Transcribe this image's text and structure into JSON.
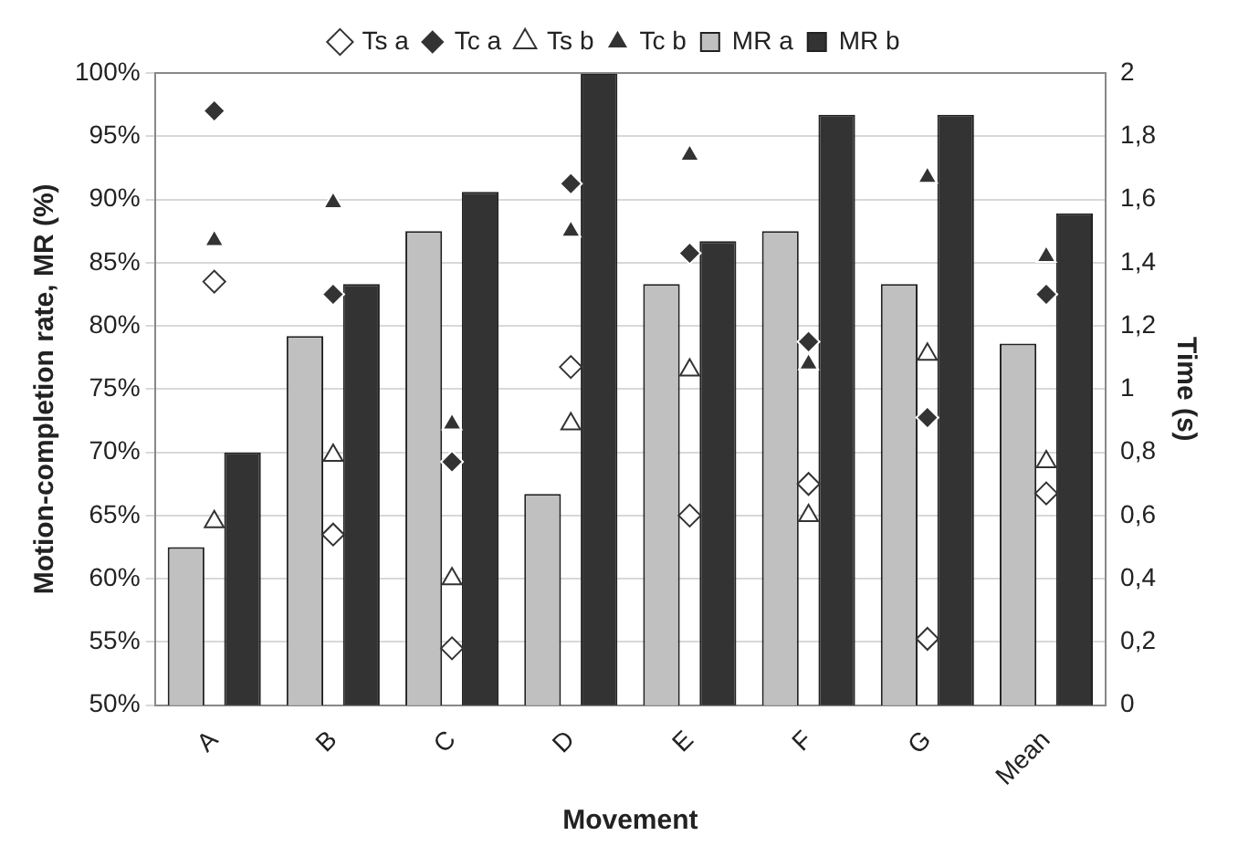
{
  "chart_data": {
    "type": "bar",
    "xlabel": "Movement",
    "ylabel": "Motion-completion rate, MR (%)",
    "y2label": "Time (s)",
    "categories": [
      "A",
      "B",
      "C",
      "D",
      "E",
      "F",
      "G",
      "Mean"
    ],
    "series": [
      {
        "name": "MR a",
        "color": "#c0c0c0",
        "values": [
          62.5,
          79.2,
          87.5,
          66.7,
          83.3,
          87.5,
          83.3,
          78.6
        ]
      },
      {
        "name": "MR b",
        "color": "#333333",
        "values": [
          70,
          83.3,
          90.6,
          100,
          86.7,
          96.7,
          96.7,
          88.9
        ]
      },
      {
        "name": "Ts a",
        "type": "scatter",
        "axis": "y2",
        "marker": "diamond",
        "color": "#ffffff",
        "values": [
          1.34,
          0.54,
          0.18,
          1.07,
          0.6,
          0.7,
          0.21,
          0.67
        ]
      },
      {
        "name": "Tc a",
        "type": "scatter",
        "axis": "y2",
        "marker": "diamond",
        "color": "#333333",
        "values": [
          1.88,
          1.3,
          0.77,
          1.65,
          1.43,
          1.15,
          0.91,
          1.3
        ]
      },
      {
        "name": "Ts b",
        "type": "scatter",
        "axis": "y2",
        "marker": "triangle",
        "color": "#ffffff",
        "values": [
          0.58,
          0.79,
          0.4,
          0.89,
          1.06,
          0.6,
          1.11,
          0.77
        ]
      },
      {
        "name": "Tc b",
        "type": "scatter",
        "axis": "y2",
        "marker": "triangle",
        "color": "#333333",
        "values": [
          1.47,
          1.59,
          0.89,
          1.5,
          1.74,
          1.08,
          1.67,
          1.42
        ]
      }
    ],
    "ylim": [
      50,
      100
    ],
    "yticks": [
      {
        "value": 50,
        "label": "50%"
      },
      {
        "value": 55,
        "label": "55%"
      },
      {
        "value": 60,
        "label": "60%"
      },
      {
        "value": 65,
        "label": "65%"
      },
      {
        "value": 70,
        "label": "70%"
      },
      {
        "value": 75,
        "label": "75%"
      },
      {
        "value": 80,
        "label": "80%"
      },
      {
        "value": 85,
        "label": "85%"
      },
      {
        "value": 90,
        "label": "90%"
      },
      {
        "value": 95,
        "label": "95%"
      },
      {
        "value": 100,
        "label": "100%"
      }
    ],
    "y2lim": [
      0,
      2
    ],
    "y2ticks": [
      0,
      {
        "value": 0.2,
        "label": "0,2"
      },
      {
        "value": 0.4,
        "label": "0,4"
      },
      {
        "value": 0.6,
        "label": "0,6"
      },
      {
        "value": 0.8,
        "label": "0,8"
      },
      1,
      {
        "value": 1.2,
        "label": "1,2"
      },
      {
        "value": 1.4,
        "label": "1,4"
      },
      {
        "value": 1.6,
        "label": "1,6"
      },
      {
        "value": 1.8,
        "label": "1,8"
      },
      2
    ],
    "grid": "y",
    "legend": "top"
  }
}
